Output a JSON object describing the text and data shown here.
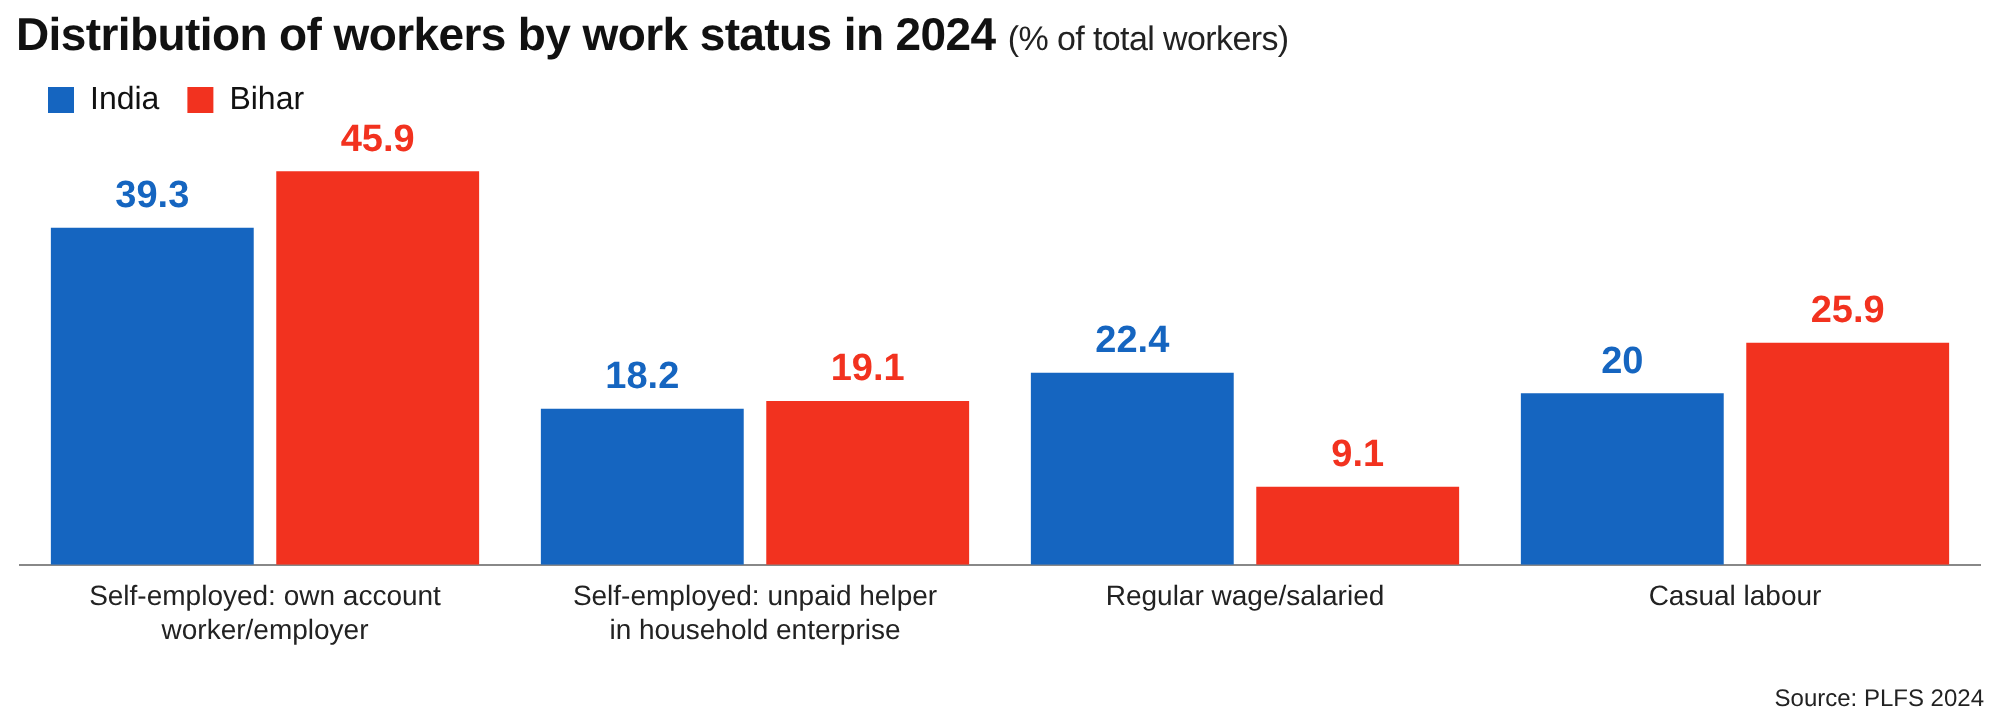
{
  "chart_data": {
    "type": "bar",
    "title": "Distribution of workers by work status in 2024",
    "subtitle": "(% of total workers)",
    "categories": [
      "Self-employed: own account worker/employer",
      "Self-employed: unpaid helper in household enterprise",
      "Regular wage/salaried",
      "Casual labour"
    ],
    "series": [
      {
        "name": "India",
        "color": "#1565c0",
        "values": [
          39.3,
          18.2,
          22.4,
          20
        ]
      },
      {
        "name": "Bihar",
        "color": "#f2321f",
        "values": [
          45.9,
          19.1,
          9.1,
          25.9
        ]
      }
    ],
    "data_labels": true,
    "legend": "top left",
    "grid": false,
    "annotations": [
      "Source: PLFS 2024"
    ]
  }
}
